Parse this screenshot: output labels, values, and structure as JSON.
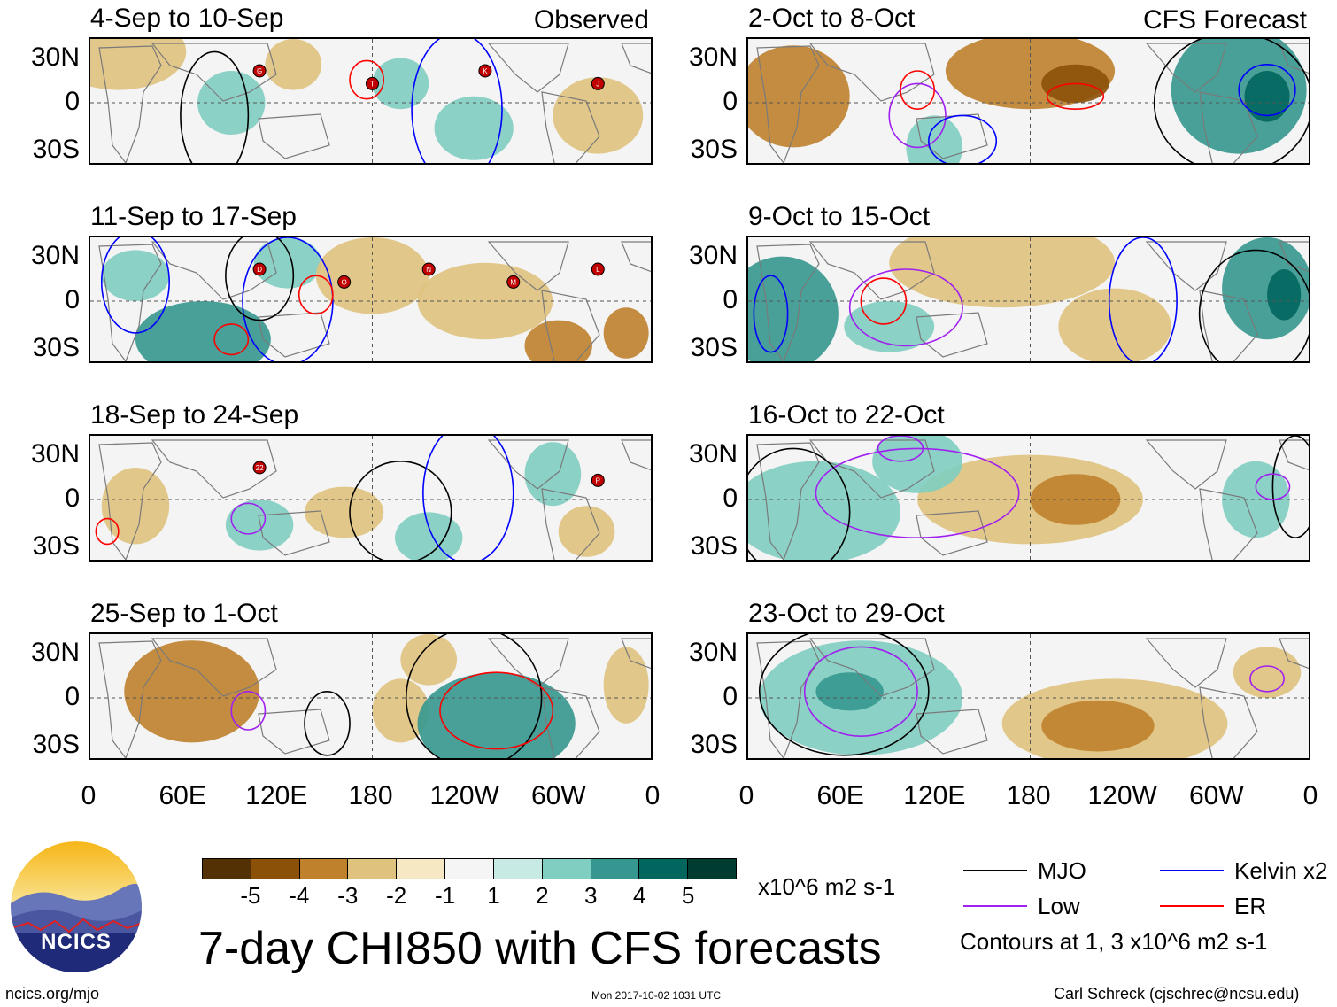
{
  "chart_data": {
    "type": "heatmap",
    "title": "7-day CHI850 with CFS forecasts",
    "subtitle_left": "Observed",
    "subtitle_right": "CFS Forecast",
    "x_tick_labels": [
      "0",
      "60E",
      "120E",
      "180",
      "120W",
      "60W",
      "0"
    ],
    "y_tick_labels": [
      "30N",
      "0",
      "30S"
    ],
    "ylim": [
      -40,
      40
    ],
    "colorbar": {
      "ticks": [
        "-5",
        "-4",
        "-3",
        "-2",
        "-1",
        "1",
        "2",
        "3",
        "4",
        "5"
      ],
      "units": "x10^6 m2 s-1",
      "colors": [
        "#543005",
        "#8c5109",
        "#bf812c",
        "#dfc27d",
        "#f6e8c3",
        "#f5f5f5",
        "#c7eae5",
        "#80cdc1",
        "#35978f",
        "#01665e",
        "#003c30"
      ]
    },
    "legend": [
      {
        "label": "MJO",
        "color": "#000000"
      },
      {
        "label": "Kelvin x2",
        "color": "#0000ff"
      },
      {
        "label": "Low",
        "color": "#a020f0"
      },
      {
        "label": "ER",
        "color": "#ff0000"
      }
    ],
    "contour_note": "Contours at 1, 3 x10^6 m2 s-1",
    "panels": [
      {
        "id": "obs1",
        "title": "4-Sep to 10-Sep",
        "label": "Observed",
        "storms": [
          "G",
          "T",
          "K",
          "J"
        ]
      },
      {
        "id": "obs2",
        "title": "11-Sep to 17-Sep",
        "storms": [
          "D",
          "O",
          "N",
          "M",
          "L"
        ]
      },
      {
        "id": "obs3",
        "title": "18-Sep to 24-Sep",
        "storms": [
          "22",
          "P"
        ]
      },
      {
        "id": "obs4",
        "title": "25-Sep to 1-Oct",
        "storms": []
      },
      {
        "id": "fc1",
        "title": "2-Oct to 8-Oct",
        "label": "CFS Forecast"
      },
      {
        "id": "fc2",
        "title": "9-Oct to 15-Oct"
      },
      {
        "id": "fc3",
        "title": "16-Oct to 22-Oct"
      },
      {
        "id": "fc4",
        "title": "23-Oct to 29-Oct"
      }
    ]
  },
  "logo": {
    "text": "NCICS"
  },
  "footer": {
    "left": "ncics.org/mjo",
    "center": "Mon 2017-10-02 1031 UTC",
    "right": "Carl Schreck (cjschrec@ncsu.edu)"
  }
}
